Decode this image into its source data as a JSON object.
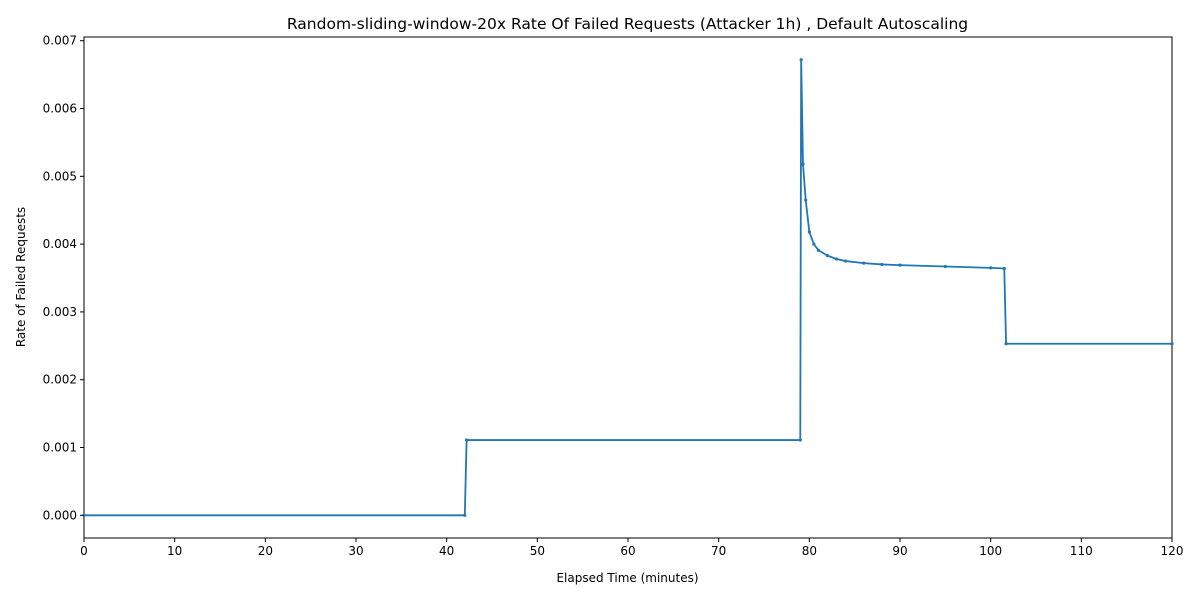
{
  "chart_data": {
    "type": "line",
    "title": "Random-sliding-window-20x Rate Of Failed Requests (Attacker 1h) , Default Autoscaling",
    "xlabel": "Elapsed Time (minutes)",
    "ylabel": "Rate of Failed Requests",
    "xlim": [
      0,
      120
    ],
    "ylim": [
      -0.000335,
      0.007055
    ],
    "xticks": [
      0,
      10,
      20,
      30,
      40,
      50,
      60,
      70,
      80,
      90,
      100,
      110,
      120
    ],
    "xtick_labels": [
      "0",
      "10",
      "20",
      "30",
      "40",
      "50",
      "60",
      "70",
      "80",
      "90",
      "100",
      "110",
      "120"
    ],
    "yticks": [
      0.0,
      0.001,
      0.002,
      0.003,
      0.004,
      0.005,
      0.006,
      0.007
    ],
    "ytick_labels": [
      "0.000",
      "0.001",
      "0.002",
      "0.003",
      "0.004",
      "0.005",
      "0.006",
      "0.007"
    ],
    "grid": false,
    "legend": "none",
    "series_color": "#1f77b4",
    "series": [
      {
        "x": [
          0,
          42.0,
          42.2,
          79.0,
          79.1,
          79.3,
          79.6,
          80.0,
          80.5,
          81.0,
          82.0,
          83.0,
          84.0,
          86.0,
          88.0,
          90.0,
          95.0,
          100.0,
          101.5,
          101.7,
          120.0
        ],
        "y": [
          0.0,
          0.0,
          0.00111,
          0.00111,
          0.00672,
          0.00518,
          0.00465,
          0.00418,
          0.004,
          0.00391,
          0.00383,
          0.00378,
          0.00375,
          0.00372,
          0.0037,
          0.00369,
          0.00367,
          0.00365,
          0.00364,
          0.00253,
          0.00253
        ]
      }
    ]
  }
}
